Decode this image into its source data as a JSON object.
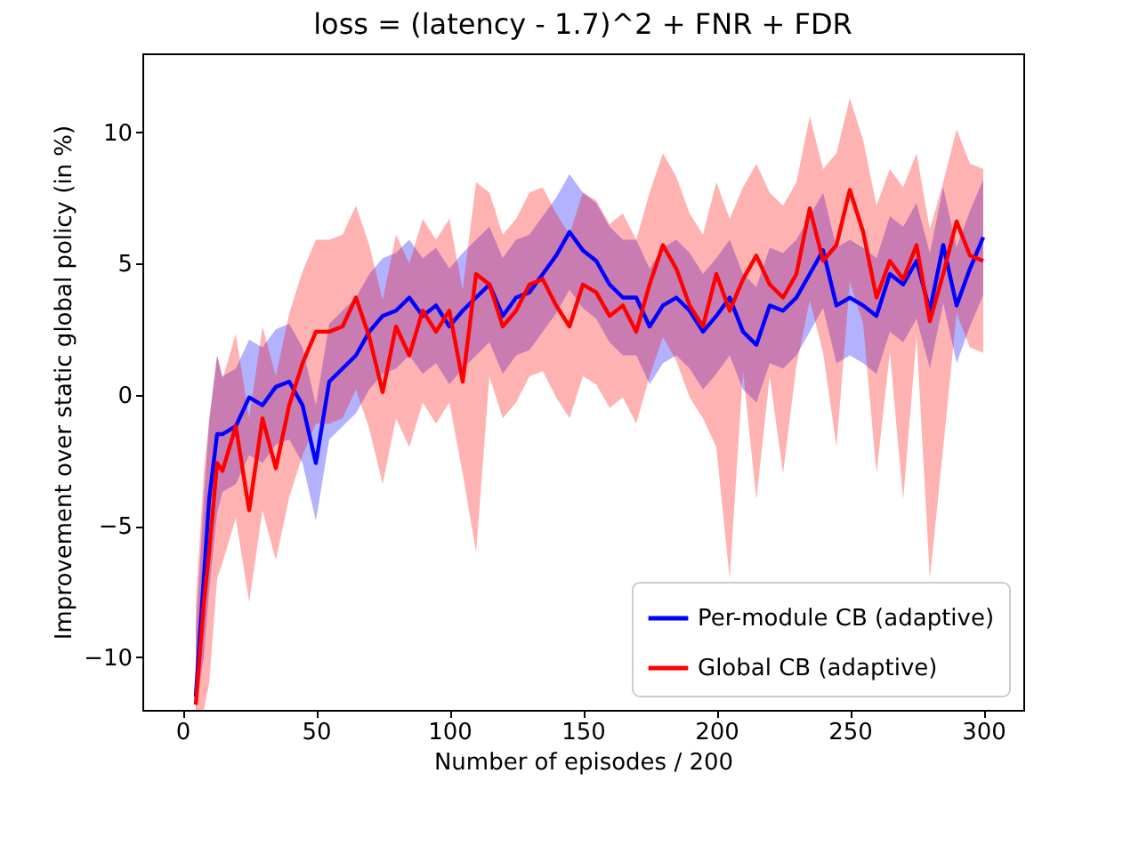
{
  "chart_data": {
    "type": "line",
    "title": "loss = (latency - 1.7)^2 + FNR + FDR",
    "xlabel": "Number of episodes / 200",
    "ylabel": "Improvement over static global policy (in %)",
    "x": [
      5,
      8,
      10,
      13,
      15,
      20,
      25,
      30,
      35,
      40,
      45,
      50,
      55,
      60,
      65,
      70,
      75,
      80,
      85,
      90,
      95,
      100,
      105,
      110,
      115,
      120,
      125,
      130,
      135,
      140,
      145,
      150,
      155,
      160,
      165,
      170,
      175,
      180,
      185,
      190,
      195,
      200,
      205,
      210,
      215,
      220,
      225,
      230,
      235,
      240,
      245,
      250,
      255,
      260,
      265,
      270,
      275,
      280,
      285,
      290,
      295,
      300
    ],
    "series": [
      {
        "name": "Per-module CB (adaptive)",
        "color": "#0000ff",
        "values": [
          -11.5,
          -7,
          -4,
          -1.5,
          -1.5,
          -1.2,
          -0.1,
          -0.4,
          0.3,
          0.5,
          -0.4,
          -2.6,
          0.5,
          1.0,
          1.5,
          2.4,
          3.0,
          3.2,
          3.7,
          3.0,
          3.4,
          2.6,
          3.2,
          3.7,
          4.2,
          3.0,
          3.7,
          3.9,
          4.6,
          5.3,
          6.2,
          5.5,
          5.1,
          4.2,
          3.7,
          3.7,
          2.6,
          3.4,
          3.7,
          3.2,
          2.4,
          3.0,
          3.7,
          2.4,
          1.9,
          3.4,
          3.2,
          3.7,
          4.6,
          5.5,
          3.4,
          3.7,
          3.4,
          3.0,
          4.6,
          4.2,
          5.1,
          3.2,
          5.7,
          3.4,
          4.8,
          6.0
        ],
        "lower": [
          -12,
          -10,
          -7.5,
          -4.5,
          -3.7,
          -3.4,
          -2.3,
          -2.6,
          -1.9,
          -1.7,
          -2.6,
          -4.8,
          -1.7,
          -1.2,
          -0.7,
          0.2,
          0.8,
          1.0,
          1.5,
          0.8,
          1.2,
          0.4,
          1.0,
          1.5,
          2.0,
          0.8,
          1.5,
          1.7,
          2.4,
          3.1,
          4.0,
          3.3,
          2.9,
          2.0,
          1.5,
          1.5,
          0.4,
          1.2,
          1.5,
          1.0,
          0.2,
          0.8,
          1.5,
          0.2,
          -0.3,
          1.2,
          1.0,
          1.5,
          2.4,
          3.3,
          1.2,
          1.5,
          1.2,
          0.8,
          2.4,
          2.0,
          2.9,
          1.0,
          3.5,
          1.2,
          2.6,
          3.8
        ],
        "upper": [
          -9,
          -4,
          -1,
          1.5,
          0.7,
          1.0,
          2.1,
          1.8,
          2.5,
          2.7,
          1.8,
          -0.4,
          2.7,
          3.2,
          3.7,
          4.6,
          5.2,
          5.4,
          5.9,
          5.2,
          5.6,
          4.8,
          5.4,
          5.9,
          6.4,
          5.2,
          5.9,
          6.1,
          6.8,
          7.5,
          8.4,
          7.7,
          7.3,
          6.4,
          5.9,
          5.9,
          4.8,
          5.6,
          5.9,
          5.4,
          4.6,
          5.2,
          5.9,
          4.6,
          4.1,
          5.6,
          5.4,
          5.9,
          6.8,
          7.7,
          5.6,
          5.9,
          5.6,
          5.2,
          6.8,
          6.4,
          7.3,
          5.4,
          7.9,
          5.6,
          7.0,
          8.2
        ]
      },
      {
        "name": "Global CB (adaptive)",
        "color": "#ff0000",
        "values": [
          -11.8,
          -8,
          -6,
          -2.6,
          -2.9,
          -1.2,
          -4.4,
          -0.9,
          -2.8,
          -0.4,
          1.2,
          2.4,
          2.4,
          2.6,
          3.7,
          2.2,
          0.1,
          2.6,
          1.5,
          3.2,
          2.4,
          3.2,
          0.5,
          4.6,
          4.2,
          2.6,
          3.2,
          4.2,
          4.4,
          3.4,
          2.6,
          4.2,
          3.9,
          3.0,
          3.4,
          2.4,
          4.2,
          5.7,
          4.8,
          3.4,
          2.6,
          4.6,
          3.2,
          4.4,
          5.3,
          4.2,
          3.7,
          4.6,
          7.1,
          5.1,
          5.7,
          7.8,
          6.2,
          3.7,
          5.1,
          4.4,
          5.7,
          2.8,
          4.6,
          6.6,
          5.3,
          5.1
        ],
        "lower": [
          -12,
          -12,
          -11,
          -7,
          -6.4,
          -4.7,
          -7.9,
          -4.4,
          -6.3,
          -3.9,
          -2.3,
          -1.1,
          -1.1,
          -0.9,
          0.2,
          -1.3,
          -3.4,
          -0.9,
          -2.0,
          -0.3,
          -1.1,
          -0.3,
          -3.0,
          -6,
          0.7,
          -0.9,
          -0.3,
          0.7,
          0.9,
          -0.1,
          -0.9,
          0.7,
          0.4,
          -0.5,
          -0.1,
          -1.1,
          0.7,
          2.2,
          1.3,
          -0.1,
          -0.9,
          -2,
          -7,
          0.9,
          -4,
          0.7,
          -3,
          1.1,
          3.6,
          1.6,
          -2,
          4.3,
          2.7,
          -3,
          1.6,
          -4,
          2.2,
          -7,
          -2,
          3.1,
          1.8,
          1.6
        ],
        "upper": [
          -8,
          -3,
          -1,
          1.5,
          0.6,
          2.3,
          -0.9,
          2.6,
          0.7,
          3.1,
          4.7,
          5.9,
          5.9,
          6.1,
          7.2,
          5.7,
          3.6,
          6.1,
          5.0,
          6.7,
          5.9,
          6.7,
          4.0,
          8.1,
          7.7,
          6.1,
          6.7,
          7.7,
          7.9,
          6.9,
          6.1,
          7.7,
          7.4,
          6.5,
          6.9,
          5.9,
          7.7,
          9.2,
          8.3,
          6.9,
          6.1,
          8.1,
          6.7,
          7.9,
          8.8,
          7.7,
          7.2,
          8.1,
          10.6,
          8.6,
          9.2,
          11.3,
          9.7,
          7.2,
          8.6,
          7.9,
          9.2,
          6.3,
          8.1,
          10.1,
          8.8,
          8.6
        ]
      }
    ],
    "xlim": [
      -15,
      315
    ],
    "xticks": [
      0,
      50,
      100,
      150,
      200,
      250,
      300
    ],
    "ylim": [
      -12,
      13
    ],
    "yticks": [
      -10,
      -5,
      0,
      5,
      10
    ],
    "grid": false,
    "legend": "bottom right",
    "marker": "none",
    "line_style": "solid"
  }
}
